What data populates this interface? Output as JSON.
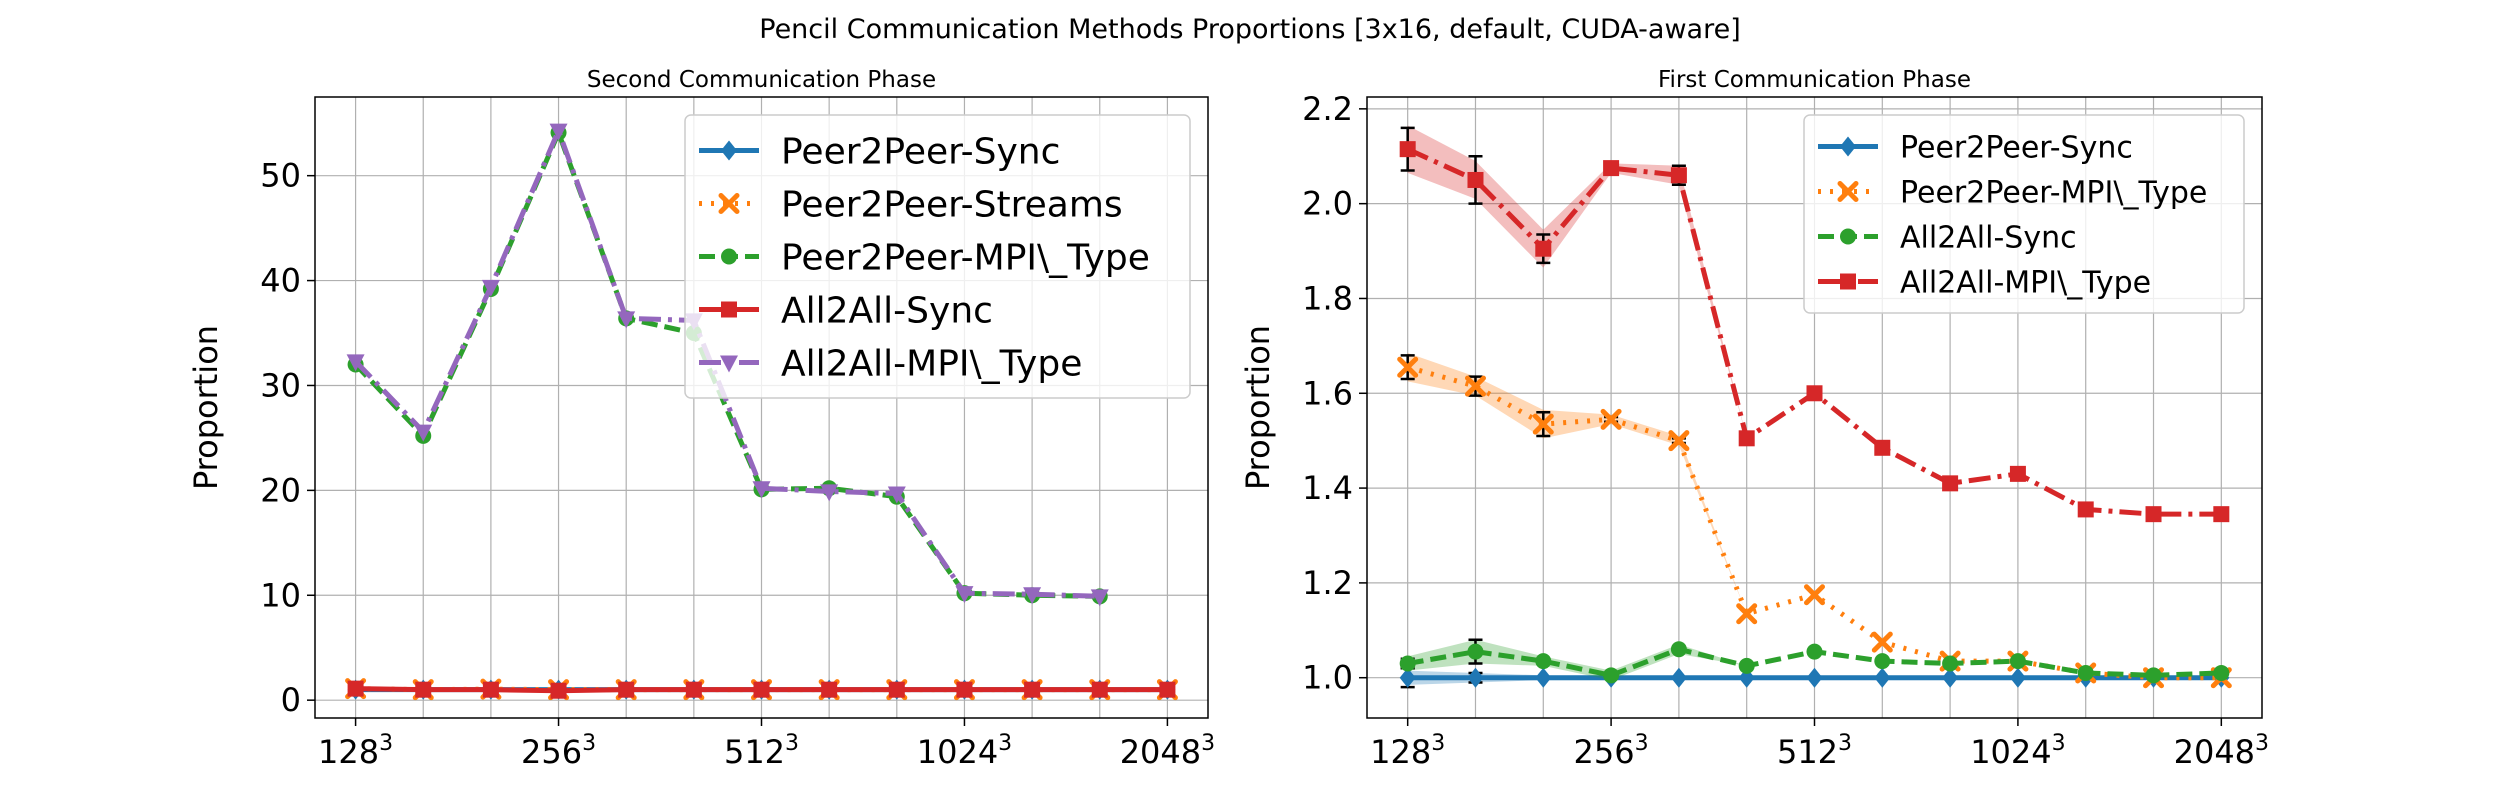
{
  "suptitle": "Pencil Communication Methods Proportions [3x16, default, CUDA-aware]",
  "colors": {
    "blue": "#1f77b4",
    "orange": "#ff7f0e",
    "green": "#2ca02c",
    "red": "#d62728",
    "purple": "#9467bd",
    "grid": "#b0b0b0",
    "axis": "#000000"
  },
  "chart_data": [
    {
      "type": "line",
      "title": "Second Communication Phase",
      "xlabel": "",
      "ylabel": "Proportion",
      "grid": true,
      "legend": "top-right",
      "x": [
        0,
        1,
        2,
        3,
        4,
        5,
        6,
        7,
        8,
        9,
        10,
        11,
        12
      ],
      "xlim": [
        -0.6,
        12.6
      ],
      "xticks": [
        {
          "x": 0,
          "base": "128",
          "exp": "3"
        },
        {
          "x": 3,
          "base": "256",
          "exp": "3"
        },
        {
          "x": 6,
          "base": "512",
          "exp": "3"
        },
        {
          "x": 9,
          "base": "1024",
          "exp": "3"
        },
        {
          "x": 12,
          "base": "2048",
          "exp": "3"
        }
      ],
      "ylim": [
        -1.7,
        57.5
      ],
      "yticks": [
        0,
        10,
        20,
        30,
        40,
        50
      ],
      "series": [
        {
          "name": "Peer2Peer-Sync",
          "color": "blue",
          "style": "solid",
          "marker": "diamond",
          "values": [
            1,
            1,
            1,
            1,
            1,
            1,
            1,
            1,
            1,
            1,
            1,
            1,
            1
          ]
        },
        {
          "name": "Peer2Peer-Streams",
          "color": "orange",
          "style": "dotted",
          "marker": "x",
          "values": [
            1.1,
            1.0,
            1.05,
            1.0,
            1.0,
            1.0,
            1.0,
            1.0,
            1.0,
            1.0,
            1.0,
            1.0,
            1.0
          ]
        },
        {
          "name": "Peer2Peer-MPI\\_Type",
          "color": "green",
          "style": "dashed",
          "marker": "circle",
          "values": [
            32.0,
            25.2,
            39.2,
            54.1,
            36.4,
            35.0,
            20.1,
            20.2,
            19.4,
            10.2,
            10.0,
            9.9,
            null
          ]
        },
        {
          "name": "All2All-Sync",
          "color": "red",
          "style": "solid",
          "marker": "square",
          "values": [
            1.1,
            1.0,
            1.0,
            0.9,
            1.0,
            1.0,
            1.0,
            1.0,
            1.0,
            1.0,
            1.0,
            1.0,
            1.0
          ]
        },
        {
          "name": "All2All-MPI\\_Type",
          "color": "purple",
          "style": "dashdot",
          "marker": "triangle",
          "values": [
            32.3,
            25.6,
            39.4,
            54.3,
            36.4,
            36.2,
            20.2,
            19.9,
            19.7,
            10.2,
            10.1,
            9.9,
            null
          ]
        }
      ]
    },
    {
      "type": "line",
      "title": "First Communication Phase",
      "xlabel": "",
      "ylabel": "Proportion",
      "grid": true,
      "legend": "top-right",
      "x": [
        0,
        1,
        2,
        3,
        4,
        5,
        6,
        7,
        8,
        9,
        10,
        11,
        12
      ],
      "xlim": [
        -0.6,
        12.6
      ],
      "xticks": [
        {
          "x": 0,
          "base": "128",
          "exp": "3"
        },
        {
          "x": 3,
          "base": "256",
          "exp": "3"
        },
        {
          "x": 6,
          "base": "512",
          "exp": "3"
        },
        {
          "x": 9,
          "base": "1024",
          "exp": "3"
        },
        {
          "x": 12,
          "base": "2048",
          "exp": "3"
        }
      ],
      "ylim": [
        0.915,
        2.225
      ],
      "yticks": [
        1.0,
        1.2,
        1.4,
        1.6,
        1.8,
        2.0,
        2.2
      ],
      "series": [
        {
          "name": "Peer2Peer-Sync",
          "color": "blue",
          "style": "solid",
          "marker": "diamond",
          "values": [
            1.0,
            1.0,
            1.0,
            1.0,
            1.0,
            1.0,
            1.0,
            1.0,
            1.0,
            1.0,
            1.0,
            1.0,
            1.0
          ],
          "band": [
            0.015,
            0.01,
            0.005,
            0.005,
            0.0,
            0.0,
            0.0,
            0.0,
            0.0,
            0.0,
            0.0,
            0.0,
            0.0
          ],
          "err": [
            0.02,
            0.01,
            0.0,
            0.0,
            0.0,
            0.0,
            0.0,
            0.0,
            0.0,
            0.0,
            0.0,
            0.0,
            0.0
          ]
        },
        {
          "name": "Peer2Peer-MPI\\_Type",
          "color": "orange",
          "style": "dotted",
          "marker": "x",
          "values": [
            1.655,
            1.615,
            1.535,
            1.545,
            1.5,
            1.135,
            1.175,
            1.075,
            1.035,
            1.035,
            1.01,
            1.0,
            1.0
          ],
          "band": [
            0.03,
            0.02,
            0.03,
            0.01,
            0.01,
            0.0,
            0.0,
            0.0,
            0.0,
            0.0,
            0.0,
            0.0,
            0.0
          ],
          "err": [
            0.025,
            0.02,
            0.025,
            0.005,
            0.005,
            0.0,
            0.0,
            0.0,
            0.0,
            0.0,
            0.0,
            0.0,
            0.0
          ]
        },
        {
          "name": "All2All-Sync",
          "color": "green",
          "style": "dashed",
          "marker": "circle",
          "values": [
            1.03,
            1.055,
            1.035,
            1.005,
            1.06,
            1.025,
            1.055,
            1.035,
            1.03,
            1.035,
            1.01,
            1.005,
            1.01
          ],
          "band": [
            0.015,
            0.025,
            0.01,
            0.01,
            0.01,
            0.0,
            0.0,
            0.0,
            0.0,
            0.0,
            0.0,
            0.0,
            0.0
          ],
          "err": [
            0.01,
            0.025,
            0.005,
            0.005,
            0.0,
            0.0,
            0.0,
            0.0,
            0.0,
            0.0,
            0.0,
            0.0,
            0.0
          ]
        },
        {
          "name": "All2All-MPI\\_Type",
          "color": "red",
          "style": "dashdot",
          "marker": "square",
          "values": [
            2.115,
            2.05,
            1.905,
            2.075,
            2.06,
            1.505,
            1.6,
            1.485,
            1.41,
            1.43,
            1.355,
            1.345,
            1.345
          ],
          "band": [
            0.05,
            0.04,
            0.04,
            0.01,
            0.02,
            0.0,
            0.0,
            0.0,
            0.0,
            0.0,
            0.0,
            0.0,
            0.0
          ],
          "err": [
            0.045,
            0.05,
            0.03,
            0.01,
            0.02,
            0.0,
            0.0,
            0.0,
            0.0,
            0.0,
            0.0,
            0.0,
            0.0
          ]
        }
      ]
    }
  ]
}
